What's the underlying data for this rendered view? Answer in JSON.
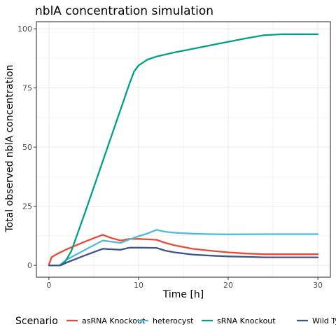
{
  "chart_data": {
    "type": "line",
    "title": "nblA concentration simulation",
    "xlabel": "Time [h]",
    "ylabel": "Total observed nblA concentration",
    "xlim": [
      -1.4,
      31.4
    ],
    "ylim": [
      -5,
      103
    ],
    "x_ticks": [
      0,
      10,
      20,
      30
    ],
    "x_tick_labels": [
      "0",
      "10",
      "20",
      "30"
    ],
    "y_ticks": [
      0,
      25,
      50,
      75,
      100
    ],
    "y_tick_labels": [
      "0",
      "25",
      "50",
      "75",
      "100"
    ],
    "grid": true,
    "legend": {
      "title": "Scenario",
      "position": "bottom"
    },
    "series": [
      {
        "name": "asRNA Knockout",
        "color": "#E64B35",
        "points": [
          [
            0,
            0.3
          ],
          [
            0.3,
            3.5
          ],
          [
            1,
            5
          ],
          [
            2,
            6.8
          ],
          [
            4,
            10
          ],
          [
            5,
            11.5
          ],
          [
            6,
            12.9
          ],
          [
            7,
            11.5
          ],
          [
            8,
            10.5
          ],
          [
            9,
            11.2
          ],
          [
            10,
            11.2
          ],
          [
            11,
            11
          ],
          [
            12,
            10.8
          ],
          [
            13,
            9.5
          ],
          [
            14,
            8.5
          ],
          [
            16,
            7
          ],
          [
            18,
            6.2
          ],
          [
            20,
            5.5
          ],
          [
            22,
            5
          ],
          [
            24,
            4.7
          ],
          [
            30,
            4.7
          ]
        ]
      },
      {
        "name": "heterocyst",
        "color": "#4DBBD5",
        "points": [
          [
            0,
            0
          ],
          [
            1.2,
            0
          ],
          [
            2,
            2.5
          ],
          [
            4,
            6.5
          ],
          [
            6,
            10.5
          ],
          [
            7,
            10
          ],
          [
            8,
            9.5
          ],
          [
            9,
            11
          ],
          [
            10,
            12.3
          ],
          [
            11,
            13.5
          ],
          [
            12,
            15
          ],
          [
            13,
            14.2
          ],
          [
            14,
            13.8
          ],
          [
            16,
            13.4
          ],
          [
            18,
            13.2
          ],
          [
            20,
            13.1
          ],
          [
            24,
            13.2
          ],
          [
            30,
            13.2
          ]
        ]
      },
      {
        "name": "sRNA Knockout",
        "color": "#00A087",
        "points": [
          [
            0,
            0
          ],
          [
            1.2,
            0
          ],
          [
            1.8,
            1.5
          ],
          [
            2.5,
            6
          ],
          [
            4,
            22
          ],
          [
            6,
            44
          ],
          [
            8,
            66
          ],
          [
            9,
            77
          ],
          [
            9.5,
            82
          ],
          [
            10,
            84.5
          ],
          [
            11,
            87
          ],
          [
            12,
            88.3
          ],
          [
            14,
            90
          ],
          [
            16,
            91.5
          ],
          [
            18,
            93
          ],
          [
            20,
            94.5
          ],
          [
            22,
            96
          ],
          [
            24,
            97.3
          ],
          [
            26,
            97.7
          ],
          [
            30,
            97.7
          ]
        ]
      },
      {
        "name": "Wild Type",
        "color": "#3C5488",
        "points": [
          [
            0,
            0
          ],
          [
            1.3,
            0
          ],
          [
            2,
            1.2
          ],
          [
            4,
            4.2
          ],
          [
            6,
            7
          ],
          [
            7,
            6.8
          ],
          [
            8,
            6.6
          ],
          [
            9,
            7.5
          ],
          [
            10,
            7.5
          ],
          [
            12,
            7.4
          ],
          [
            13,
            6.2
          ],
          [
            14,
            5.5
          ],
          [
            16,
            4.6
          ],
          [
            18,
            4.1
          ],
          [
            20,
            3.8
          ],
          [
            22,
            3.6
          ],
          [
            24,
            3.4
          ],
          [
            30,
            3.4
          ]
        ]
      }
    ]
  }
}
